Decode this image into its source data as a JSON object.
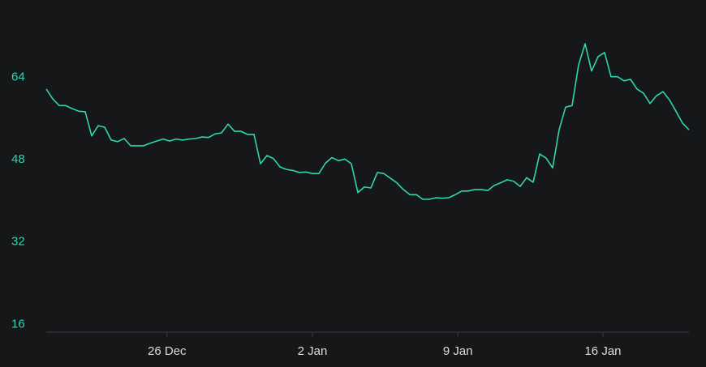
{
  "chart_data": {
    "type": "line",
    "values": [
      61.7,
      59.8,
      58.5,
      58.5,
      57.9,
      57.4,
      57.3,
      52.6,
      54.6,
      54.3,
      51.8,
      51.5,
      52.1,
      50.7,
      50.7,
      50.7,
      51.2,
      51.6,
      52.0,
      51.6,
      52.0,
      51.8,
      52.0,
      52.1,
      52.4,
      52.3,
      53.0,
      53.2,
      54.9,
      53.5,
      53.5,
      52.9,
      52.9,
      47.2,
      48.8,
      48.2,
      46.6,
      46.1,
      45.9,
      45.5,
      45.6,
      45.3,
      45.3,
      47.3,
      48.4,
      47.8,
      48.1,
      47.2,
      41.6,
      42.7,
      42.5,
      45.5,
      45.3,
      44.4,
      43.5,
      42.2,
      41.2,
      41.2,
      40.3,
      40.3,
      40.6,
      40.5,
      40.6,
      41.2,
      41.9,
      41.9,
      42.2,
      42.2,
      42.0,
      43.0,
      43.5,
      44.1,
      43.8,
      42.8,
      44.5,
      43.6,
      49.1,
      48.3,
      46.4,
      53.8,
      58.2,
      58.5,
      66.4,
      70.5,
      65.2,
      68.0,
      68.8,
      64.1,
      64.1,
      63.3,
      63.6,
      61.7,
      60.9,
      58.9,
      60.4,
      61.2,
      59.6,
      57.4,
      55.1,
      53.8
    ],
    "color": "#2fd6b0",
    "xlim": [
      0,
      99
    ],
    "xticks": [
      {
        "value": 18.6,
        "label": "26 Dec"
      },
      {
        "value": 41.0,
        "label": "2 Jan"
      },
      {
        "value": 63.4,
        "label": "9 Jan"
      },
      {
        "value": 85.75,
        "label": "16 Jan"
      }
    ],
    "ylim": [
      14.5,
      79
    ],
    "yticks": [
      16,
      32,
      48,
      64
    ]
  }
}
